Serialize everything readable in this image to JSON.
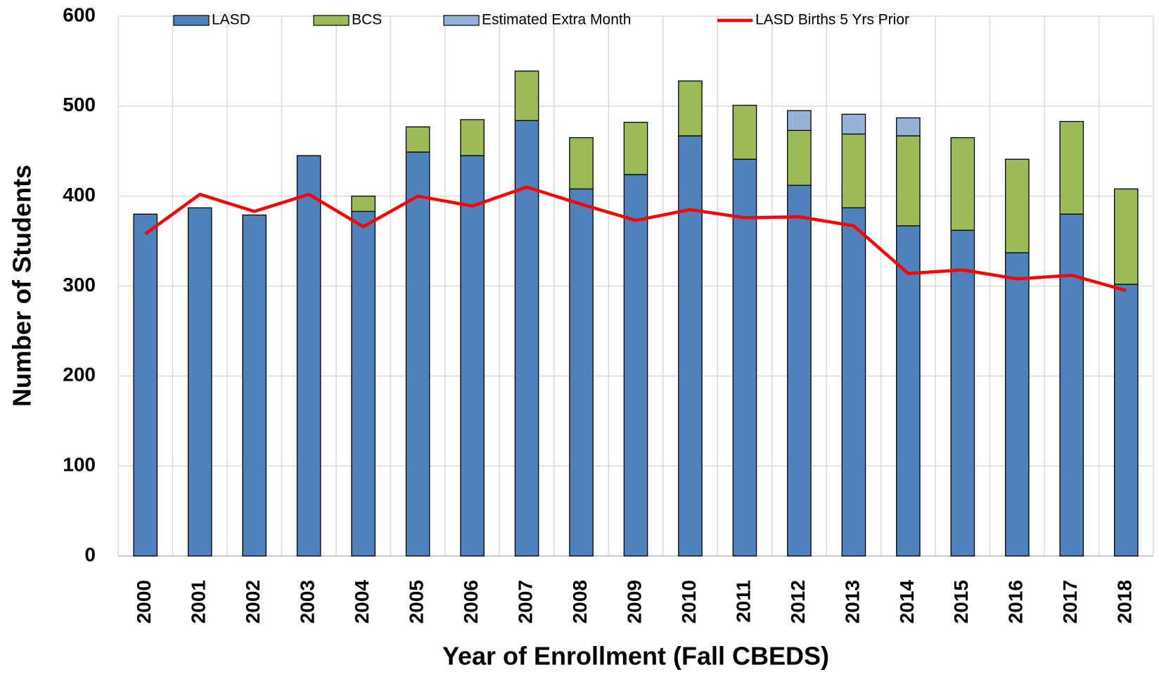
{
  "chart_data": {
    "type": "stacked_bar_line",
    "x_label": "Year of Enrollment (Fall CBEDS)",
    "y_label": "Number of Students",
    "categories": [
      "2000",
      "2001",
      "2002",
      "2003",
      "2004",
      "2005",
      "2006",
      "2007",
      "2008",
      "2009",
      "2010",
      "2011",
      "2012",
      "2013",
      "2014",
      "2015",
      "2016",
      "2017",
      "2018"
    ],
    "series": [
      {
        "name": "LASD",
        "color": "#4f81bd",
        "kind": "bar",
        "values": [
          380,
          387,
          379,
          445,
          383,
          449,
          445,
          484,
          408,
          424,
          467,
          441,
          412,
          387,
          367,
          362,
          337,
          380,
          302
        ]
      },
      {
        "name": "BCS",
        "color": "#9bbb59",
        "kind": "bar",
        "values": [
          0,
          0,
          0,
          0,
          17,
          28,
          40,
          55,
          57,
          58,
          61,
          60,
          61,
          82,
          100,
          103,
          104,
          103,
          106
        ]
      },
      {
        "name": "Estimated Extra Month",
        "color": "#95b3d7",
        "kind": "bar",
        "values": [
          0,
          0,
          0,
          0,
          0,
          0,
          0,
          0,
          0,
          0,
          0,
          0,
          22,
          22,
          20,
          0,
          0,
          0,
          0
        ]
      },
      {
        "name": "LASD Births 5 Yrs Prior",
        "color": "#ff0000",
        "kind": "line",
        "values": [
          358,
          402,
          383,
          402,
          366,
          400,
          389,
          410,
          391,
          373,
          385,
          376,
          377,
          367,
          314,
          318,
          308,
          312,
          295
        ]
      }
    ],
    "ylim": [
      0,
      600
    ],
    "yticks": [
      0,
      100,
      200,
      300,
      400,
      500,
      600
    ],
    "grid": true,
    "legend": "top"
  }
}
